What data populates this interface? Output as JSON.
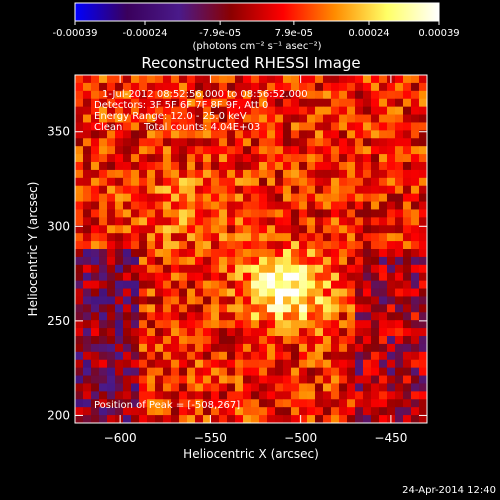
{
  "colorbar": {
    "tick_labels": [
      "-0.00039",
      "-0.00024",
      "-7.9e-05",
      "7.9e-05",
      "0.00024",
      "0.00039"
    ],
    "ticks": [
      -0.00039,
      -0.00024,
      -7.9e-05,
      7.9e-05,
      0.00024,
      0.00039
    ],
    "range": [
      -0.00039,
      0.00039
    ],
    "unit_label": "(photons cm⁻² s⁻¹ asec⁻²)",
    "colormap": [
      "#0000ff",
      "#3a005c",
      "#4a1a8a",
      "#8b0000",
      "#ff0000",
      "#ff8c00",
      "#ffff66",
      "#ffffff"
    ]
  },
  "chart_data": {
    "type": "heatmap",
    "title": "Reconstructed RHESSI Image",
    "xlabel": "Heliocentric X (arcsec)",
    "ylabel": "Heliocentric Y (arcsec)",
    "xlim": [
      -625,
      -430
    ],
    "ylim": [
      196,
      380
    ],
    "x_ticks": [
      -600,
      -550,
      -500,
      -450
    ],
    "x_tick_labels": [
      "−600",
      "−550",
      "−500",
      "−450"
    ],
    "y_ticks": [
      200,
      250,
      300,
      350
    ],
    "y_tick_labels": [
      "200",
      "250",
      "300",
      "350"
    ],
    "peak": [
      -508,
      267
    ],
    "annotations": {
      "time": "1-Jul-2012 08:52:56.000 to 08:56:52.000",
      "detectors": "Detectors: 3F 5F 6F 7F 8F 9F, Att 0",
      "energy": "Energy Range: 12.0 - 25.0 keV",
      "clean_method": "Clean",
      "total_counts": "Total counts: 4.04E+03",
      "peak_text": "Position of Peak = [-508,267]"
    }
  },
  "footer": {
    "timestamp": "24-Apr-2014 12:40"
  }
}
